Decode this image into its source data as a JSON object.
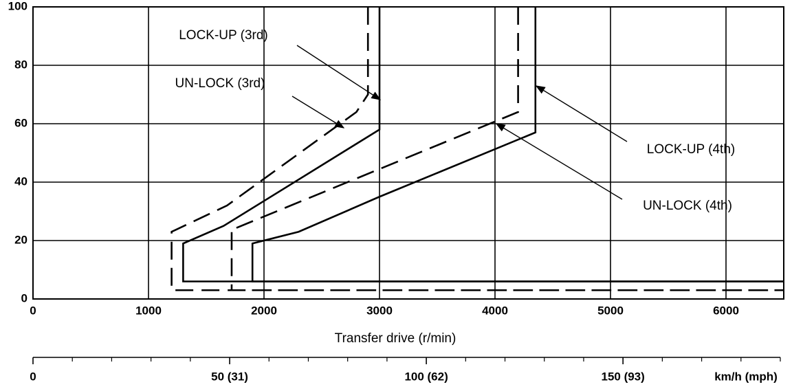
{
  "chart_data": {
    "type": "line",
    "xlabel": "Transfer drive (r/min)",
    "xlim": [
      0,
      6500
    ],
    "xticks": [
      0,
      1000,
      2000,
      3000,
      4000,
      5000,
      6000
    ],
    "ylim": [
      0,
      100
    ],
    "yticks": [
      0,
      20,
      40,
      60,
      80,
      100
    ],
    "grid": true,
    "series": [
      {
        "name": "LOCK-UP (3rd)",
        "color": "#000000",
        "style": "solid",
        "x": [
          3000,
          3000,
          1650,
          1300,
          1300,
          6500
        ],
        "values": [
          100,
          58,
          25,
          19,
          6,
          6
        ]
      },
      {
        "name": "UN-LOCK (3rd)",
        "color": "#000000",
        "style": "dashed",
        "x": [
          2900,
          2900,
          2800,
          1680,
          1200,
          1200,
          6500
        ],
        "values": [
          100,
          70,
          64,
          32,
          23,
          3,
          3
        ]
      },
      {
        "name": "LOCK-UP (4th)",
        "color": "#000000",
        "style": "solid",
        "x": [
          4350,
          4350,
          3000,
          2300,
          1900,
          1900,
          6500
        ],
        "values": [
          100,
          57,
          35,
          23,
          19,
          6,
          6
        ]
      },
      {
        "name": "UN-LOCK (4th)",
        "color": "#000000",
        "style": "dashed",
        "x": [
          4200,
          4200,
          1740,
          1720,
          1720,
          6500
        ],
        "values": [
          100,
          64,
          24,
          24,
          3,
          3
        ]
      }
    ],
    "x2lim": [
      0,
      190
    ],
    "x2ticks": [
      0,
      {
        "value": 50,
        "label": "50 (31)"
      },
      {
        "value": 100,
        "label": "100 (62)"
      },
      {
        "value": 150,
        "label": "150 (93)"
      }
    ],
    "x2minor_ticks": [
      10,
      20,
      30,
      40,
      60,
      70,
      80,
      90,
      110,
      120,
      130,
      140,
      160,
      170,
      180,
      190
    ],
    "x2label": "km/h (mph)"
  }
}
